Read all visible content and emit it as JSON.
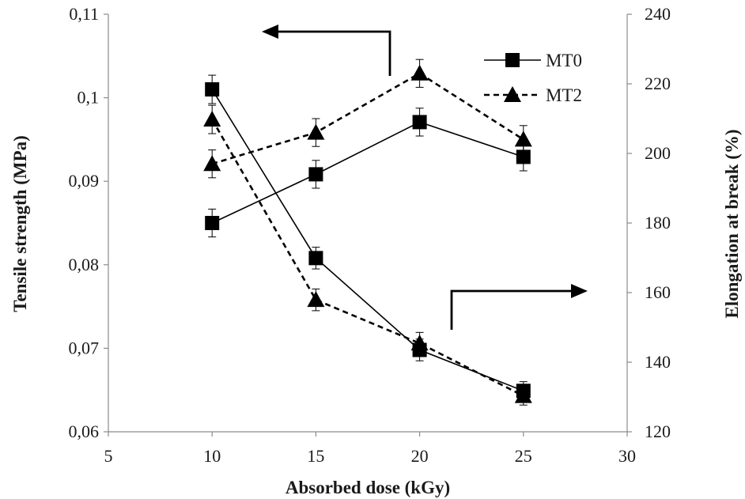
{
  "chart_data": {
    "type": "line",
    "xlabel": "Absorbed dose (kGy)",
    "ylabel_left": "Tensile strength (MPa)",
    "ylabel_right": "Elongation at break (%)",
    "xlim": [
      5,
      30
    ],
    "x_ticks": [
      "5",
      "10",
      "15",
      "20",
      "25",
      "30"
    ],
    "ylim_left": [
      0.06,
      0.11
    ],
    "y_left_ticks": [
      "0,06",
      "0,07",
      "0,08",
      "0,09",
      "0,1",
      "0,11"
    ],
    "ylim_right": [
      120,
      240
    ],
    "y_right_ticks": [
      "120",
      "140",
      "160",
      "180",
      "200",
      "220",
      "240"
    ],
    "x": [
      10,
      15,
      20,
      25
    ],
    "series": [
      {
        "name": "MT0",
        "marker": "square",
        "line": "solid",
        "axis": "left",
        "values": [
          0.101,
          0.0808,
          0.0698,
          0.0649
        ],
        "error": [
          0.0017,
          0.0013,
          0.0013,
          0.0011
        ]
      },
      {
        "name": "MT2",
        "marker": "triangle",
        "line": "dashed",
        "axis": "left",
        "values": [
          0.0974,
          0.0758,
          0.0706,
          0.0643
        ],
        "error": [
          0.0017,
          0.0013,
          0.0013,
          0.0011
        ]
      },
      {
        "name": "MT0",
        "marker": "square",
        "line": "solid",
        "axis": "right",
        "values": [
          180,
          194,
          209,
          199
        ],
        "error": [
          4,
          4,
          4,
          4
        ]
      },
      {
        "name": "MT2",
        "marker": "triangle",
        "line": "dashed",
        "axis": "right",
        "values": [
          197,
          206,
          223,
          204
        ],
        "error": [
          4,
          4,
          4,
          4
        ]
      }
    ],
    "legend": {
      "position": "top-right",
      "entries": [
        {
          "label": "MT0",
          "marker": "square",
          "line": "solid"
        },
        {
          "label": "MT2",
          "marker": "triangle",
          "line": "dashed"
        }
      ]
    },
    "annotations": [
      {
        "type": "arrow",
        "direction": "left",
        "points_to": "left axis"
      },
      {
        "type": "arrow",
        "direction": "right",
        "points_to": "right axis"
      }
    ],
    "grid": false,
    "colors": {
      "series": "#000000",
      "axis": "#8c8c8c",
      "text": "#1a1a1a"
    }
  }
}
